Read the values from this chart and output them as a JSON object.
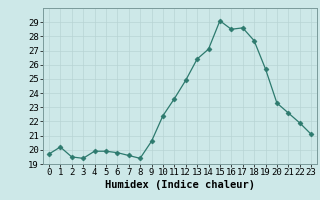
{
  "x": [
    0,
    1,
    2,
    3,
    4,
    5,
    6,
    7,
    8,
    9,
    10,
    11,
    12,
    13,
    14,
    15,
    16,
    17,
    18,
    19,
    20,
    21,
    22,
    23
  ],
  "y": [
    19.7,
    20.2,
    19.5,
    19.4,
    19.9,
    19.9,
    19.8,
    19.6,
    19.4,
    20.6,
    22.4,
    23.6,
    24.9,
    26.4,
    27.1,
    29.1,
    28.5,
    28.6,
    27.7,
    25.7,
    23.3,
    22.6,
    21.9,
    21.1
  ],
  "xlabel": "Humidex (Indice chaleur)",
  "line_color": "#2d7a6e",
  "marker": "D",
  "marker_size": 2.5,
  "bg_color": "#cde8e8",
  "grid_color": "#b8d4d4",
  "ylim": [
    19,
    30
  ],
  "xlim": [
    -0.5,
    23.5
  ],
  "yticks": [
    19,
    20,
    21,
    22,
    23,
    24,
    25,
    26,
    27,
    28,
    29
  ],
  "xticks": [
    0,
    1,
    2,
    3,
    4,
    5,
    6,
    7,
    8,
    9,
    10,
    11,
    12,
    13,
    14,
    15,
    16,
    17,
    18,
    19,
    20,
    21,
    22,
    23
  ],
  "xlabel_fontsize": 7.5,
  "tick_fontsize": 6.5
}
